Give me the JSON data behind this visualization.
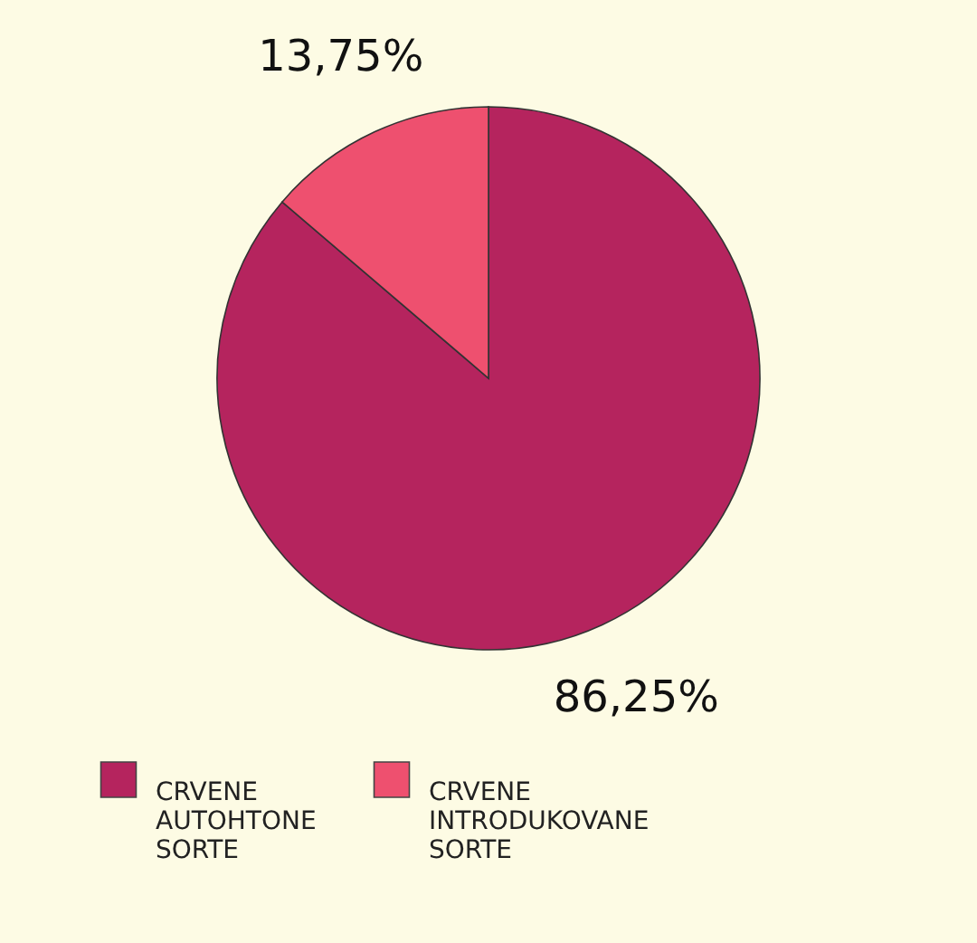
{
  "chart_data": {
    "type": "pie",
    "categories": [
      "CRVENE AUTOHTONE SORTE",
      "CRVENE INTRODUKOVANE SORTE"
    ],
    "values": [
      86.25,
      13.75
    ],
    "colors": [
      "#b5245e",
      "#ee506f"
    ],
    "value_labels": [
      "86,25%",
      "13,75%"
    ],
    "legend": "bottom left"
  }
}
